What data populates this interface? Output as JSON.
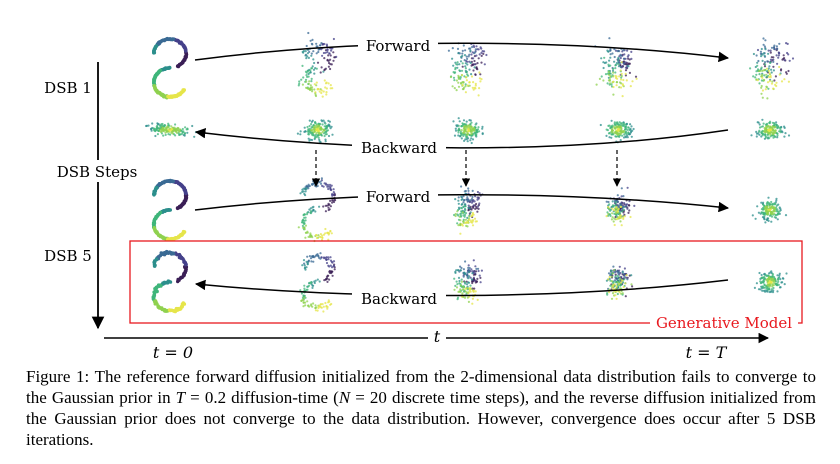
{
  "figure": {
    "arrow_labels": {
      "forward_1": "Forward",
      "backward_1": "Backward",
      "forward_5": "Forward",
      "backward_5": "Backward"
    },
    "row_labels": {
      "dsb1": "DSB 1",
      "dsb_steps": "DSB Steps",
      "dsb5": "DSB 5"
    },
    "box_label": "Generative Model",
    "time_axis": {
      "label": "t",
      "start": "t = 0",
      "end": "t = T"
    },
    "colors": {
      "box": "#e8191f",
      "arrow": "#000000",
      "palette": [
        "#3b1f56",
        "#45418a",
        "#3a6a94",
        "#2c8f8c",
        "#3fb57a",
        "#8fd14f",
        "#e6e54a"
      ]
    },
    "snapshots": {
      "rows": [
        "DSB 1 forward",
        "DSB 1 backward",
        "DSB 5 forward",
        "DSB 5 backward"
      ],
      "columns": 5
    }
  },
  "caption": {
    "p1": "Figure 1: The reference forward diffusion initialized from the 2-dimensional data distribution fails to converge to the Gaussian prior in ",
    "m1": "T",
    "p2": " = 0.2 diffusion-time (",
    "m2": "N",
    "p3": " = 20 discrete time steps), and the reverse diffusion initialized from the Gaussian prior does not converge to the data distribution. However, convergence does occur after 5 DSB iterations."
  }
}
